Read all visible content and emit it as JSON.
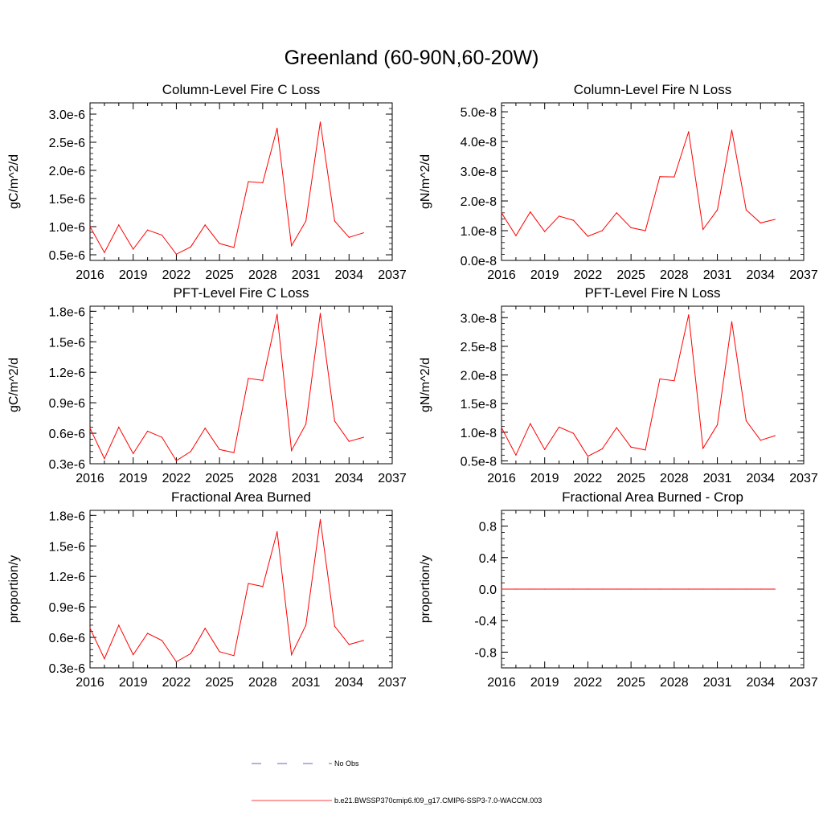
{
  "main_title": "Greenland (60-90N,60-20W)",
  "colors": {
    "series": "#ff0000",
    "obs": "#3333aa",
    "axis": "#000000"
  },
  "legend": {
    "obs_label": "No Obs",
    "model_label": "b.e21.BWSSP370cmip6.f09_g17.CMIP6-SSP3-7.0-WACCM.003"
  },
  "chart_data": [
    {
      "type": "line",
      "title": "Column-Level Fire C Loss",
      "ylabel": "gC/m^2/d",
      "xlim": [
        2016,
        2037
      ],
      "ylim": [
        4e-07,
        3.2e-06
      ],
      "xticks": [
        "2016",
        "2019",
        "2022",
        "2025",
        "2028",
        "2031",
        "2034",
        "2037"
      ],
      "yticks": [
        {
          "value": 5e-07,
          "label": "0.5e-6"
        },
        {
          "value": 1e-06,
          "label": "1.0e-6"
        },
        {
          "value": 1.5e-06,
          "label": "1.5e-6"
        },
        {
          "value": 2e-06,
          "label": "2.0e-6"
        },
        {
          "value": 2.5e-06,
          "label": "2.5e-6"
        },
        {
          "value": 3e-06,
          "label": "3.0e-6"
        }
      ],
      "x": [
        2016,
        2017,
        2018,
        2019,
        2020,
        2021,
        2022,
        2023,
        2024,
        2025,
        2026,
        2027,
        2028,
        2029,
        2030,
        2031,
        2032,
        2033,
        2034,
        2035
      ],
      "y": [
        1e-06,
        5.4e-07,
        1.03e-06,
        6e-07,
        9.4e-07,
        8.5e-07,
        5.1e-07,
        6.4e-07,
        1.03e-06,
        7e-07,
        6.3e-07,
        1.8e-06,
        1.78e-06,
        2.75e-06,
        6.6e-07,
        1.1e-06,
        2.86e-06,
        1.1e-06,
        8.1e-07,
        8.9e-07
      ]
    },
    {
      "type": "line",
      "title": "Column-Level Fire N Loss",
      "ylabel": "gN/m^2/d",
      "xlim": [
        2016,
        2037
      ],
      "ylim": [
        0.0,
        5.3e-08
      ],
      "xticks": [
        "2016",
        "2019",
        "2022",
        "2025",
        "2028",
        "2031",
        "2034",
        "2037"
      ],
      "yticks": [
        {
          "value": 0.0,
          "label": "0.0e-8"
        },
        {
          "value": 1e-08,
          "label": "1.0e-8"
        },
        {
          "value": 2e-08,
          "label": "2.0e-8"
        },
        {
          "value": 3e-08,
          "label": "3.0e-8"
        },
        {
          "value": 4e-08,
          "label": "4.0e-8"
        },
        {
          "value": 5e-08,
          "label": "5.0e-8"
        }
      ],
      "x": [
        2016,
        2017,
        2018,
        2019,
        2020,
        2021,
        2022,
        2023,
        2024,
        2025,
        2026,
        2027,
        2028,
        2029,
        2030,
        2031,
        2032,
        2033,
        2034,
        2035
      ],
      "y": [
        1.6e-08,
        8.3e-09,
        1.63e-08,
        9.7e-09,
        1.49e-08,
        1.35e-08,
        8.1e-09,
        1e-08,
        1.6e-08,
        1.1e-08,
        1e-08,
        2.82e-08,
        2.81e-08,
        4.33e-08,
        1.04e-08,
        1.7e-08,
        4.38e-08,
        1.7e-08,
        1.26e-08,
        1.38e-08
      ]
    },
    {
      "type": "line",
      "title": "PFT-Level Fire C Loss",
      "ylabel": "gC/m^2/d",
      "xlim": [
        2016,
        2037
      ],
      "ylim": [
        3e-07,
        1.85e-06
      ],
      "xticks": [
        "2016",
        "2019",
        "2022",
        "2025",
        "2028",
        "2031",
        "2034",
        "2037"
      ],
      "yticks": [
        {
          "value": 3e-07,
          "label": "0.3e-6"
        },
        {
          "value": 6e-07,
          "label": "0.6e-6"
        },
        {
          "value": 9e-07,
          "label": "0.9e-6"
        },
        {
          "value": 1.2e-06,
          "label": "1.2e-6"
        },
        {
          "value": 1.5e-06,
          "label": "1.5e-6"
        },
        {
          "value": 1.8e-06,
          "label": "1.8e-6"
        }
      ],
      "x": [
        2016,
        2017,
        2018,
        2019,
        2020,
        2021,
        2022,
        2023,
        2024,
        2025,
        2026,
        2027,
        2028,
        2029,
        2030,
        2031,
        2032,
        2033,
        2034,
        2035
      ],
      "y": [
        6.5e-07,
        3.5e-07,
        6.6e-07,
        4e-07,
        6.2e-07,
        5.6e-07,
        3.3e-07,
        4.2e-07,
        6.5e-07,
        4.4e-07,
        4.1e-07,
        1.14e-06,
        1.12e-06,
        1.77e-06,
        4.3e-07,
        6.9e-07,
        1.78e-06,
        7.2e-07,
        5.2e-07,
        5.6e-07
      ]
    },
    {
      "type": "line",
      "title": "PFT-Level Fire N Loss",
      "ylabel": "gN/m^2/d",
      "xlim": [
        2016,
        2037
      ],
      "ylim": [
        4.5e-09,
        3.2e-08
      ],
      "xticks": [
        "2016",
        "2019",
        "2022",
        "2025",
        "2028",
        "2031",
        "2034",
        "2037"
      ],
      "yticks": [
        {
          "value": 5e-09,
          "label": "0.5e-8"
        },
        {
          "value": 1e-08,
          "label": "1.0e-8"
        },
        {
          "value": 1.5e-08,
          "label": "1.5e-8"
        },
        {
          "value": 2e-08,
          "label": "2.0e-8"
        },
        {
          "value": 2.5e-08,
          "label": "2.5e-8"
        },
        {
          "value": 3e-08,
          "label": "3.0e-8"
        }
      ],
      "x": [
        2016,
        2017,
        2018,
        2019,
        2020,
        2021,
        2022,
        2023,
        2024,
        2025,
        2026,
        2027,
        2028,
        2029,
        2030,
        2031,
        2032,
        2033,
        2034,
        2035
      ],
      "y": [
        1.08e-08,
        6e-09,
        1.15e-08,
        7e-09,
        1.09e-08,
        9.8e-09,
        5.8e-09,
        7.1e-09,
        1.08e-08,
        7.4e-09,
        6.9e-09,
        1.93e-08,
        1.9e-08,
        3.05e-08,
        7.2e-09,
        1.13e-08,
        2.93e-08,
        1.2e-08,
        8.6e-09,
        9.4e-09
      ]
    },
    {
      "type": "line",
      "title": "Fractional Area Burned",
      "ylabel": "proportion/y",
      "xlim": [
        2016,
        2037
      ],
      "ylim": [
        3e-07,
        1.85e-06
      ],
      "xticks": [
        "2016",
        "2019",
        "2022",
        "2025",
        "2028",
        "2031",
        "2034",
        "2037"
      ],
      "yticks": [
        {
          "value": 3e-07,
          "label": "0.3e-6"
        },
        {
          "value": 6e-07,
          "label": "0.6e-6"
        },
        {
          "value": 9e-07,
          "label": "0.9e-6"
        },
        {
          "value": 1.2e-06,
          "label": "1.2e-6"
        },
        {
          "value": 1.5e-06,
          "label": "1.5e-6"
        },
        {
          "value": 1.8e-06,
          "label": "1.8e-6"
        }
      ],
      "x": [
        2016,
        2017,
        2018,
        2019,
        2020,
        2021,
        2022,
        2023,
        2024,
        2025,
        2026,
        2027,
        2028,
        2029,
        2030,
        2031,
        2032,
        2033,
        2034,
        2035
      ],
      "y": [
        6.9e-07,
        3.9e-07,
        7.2e-07,
        4.3e-07,
        6.4e-07,
        5.7e-07,
        3.6e-07,
        4.4e-07,
        6.9e-07,
        4.6e-07,
        4.2e-07,
        1.13e-06,
        1.1e-06,
        1.64e-06,
        4.3e-07,
        7.2e-07,
        1.76e-06,
        7.1e-07,
        5.3e-07,
        5.7e-07
      ]
    },
    {
      "type": "line",
      "title": "Fractional Area Burned - Crop",
      "ylabel": "proportion/y",
      "xlim": [
        2016,
        2037
      ],
      "ylim": [
        -1.0,
        1.0
      ],
      "xticks": [
        "2016",
        "2019",
        "2022",
        "2025",
        "2028",
        "2031",
        "2034",
        "2037"
      ],
      "yticks": [
        {
          "value": -0.8,
          "label": "-0.8"
        },
        {
          "value": -0.4,
          "label": "-0.4"
        },
        {
          "value": 0.0,
          "label": "0.0"
        },
        {
          "value": 0.4,
          "label": "0.4"
        },
        {
          "value": 0.8,
          "label": "0.8"
        }
      ],
      "x": [
        2016,
        2017,
        2018,
        2019,
        2020,
        2021,
        2022,
        2023,
        2024,
        2025,
        2026,
        2027,
        2028,
        2029,
        2030,
        2031,
        2032,
        2033,
        2034,
        2035
      ],
      "y": [
        0,
        0,
        0,
        0,
        0,
        0,
        0,
        0,
        0,
        0,
        0,
        0,
        0,
        0,
        0,
        0,
        0,
        0,
        0,
        0
      ]
    }
  ]
}
